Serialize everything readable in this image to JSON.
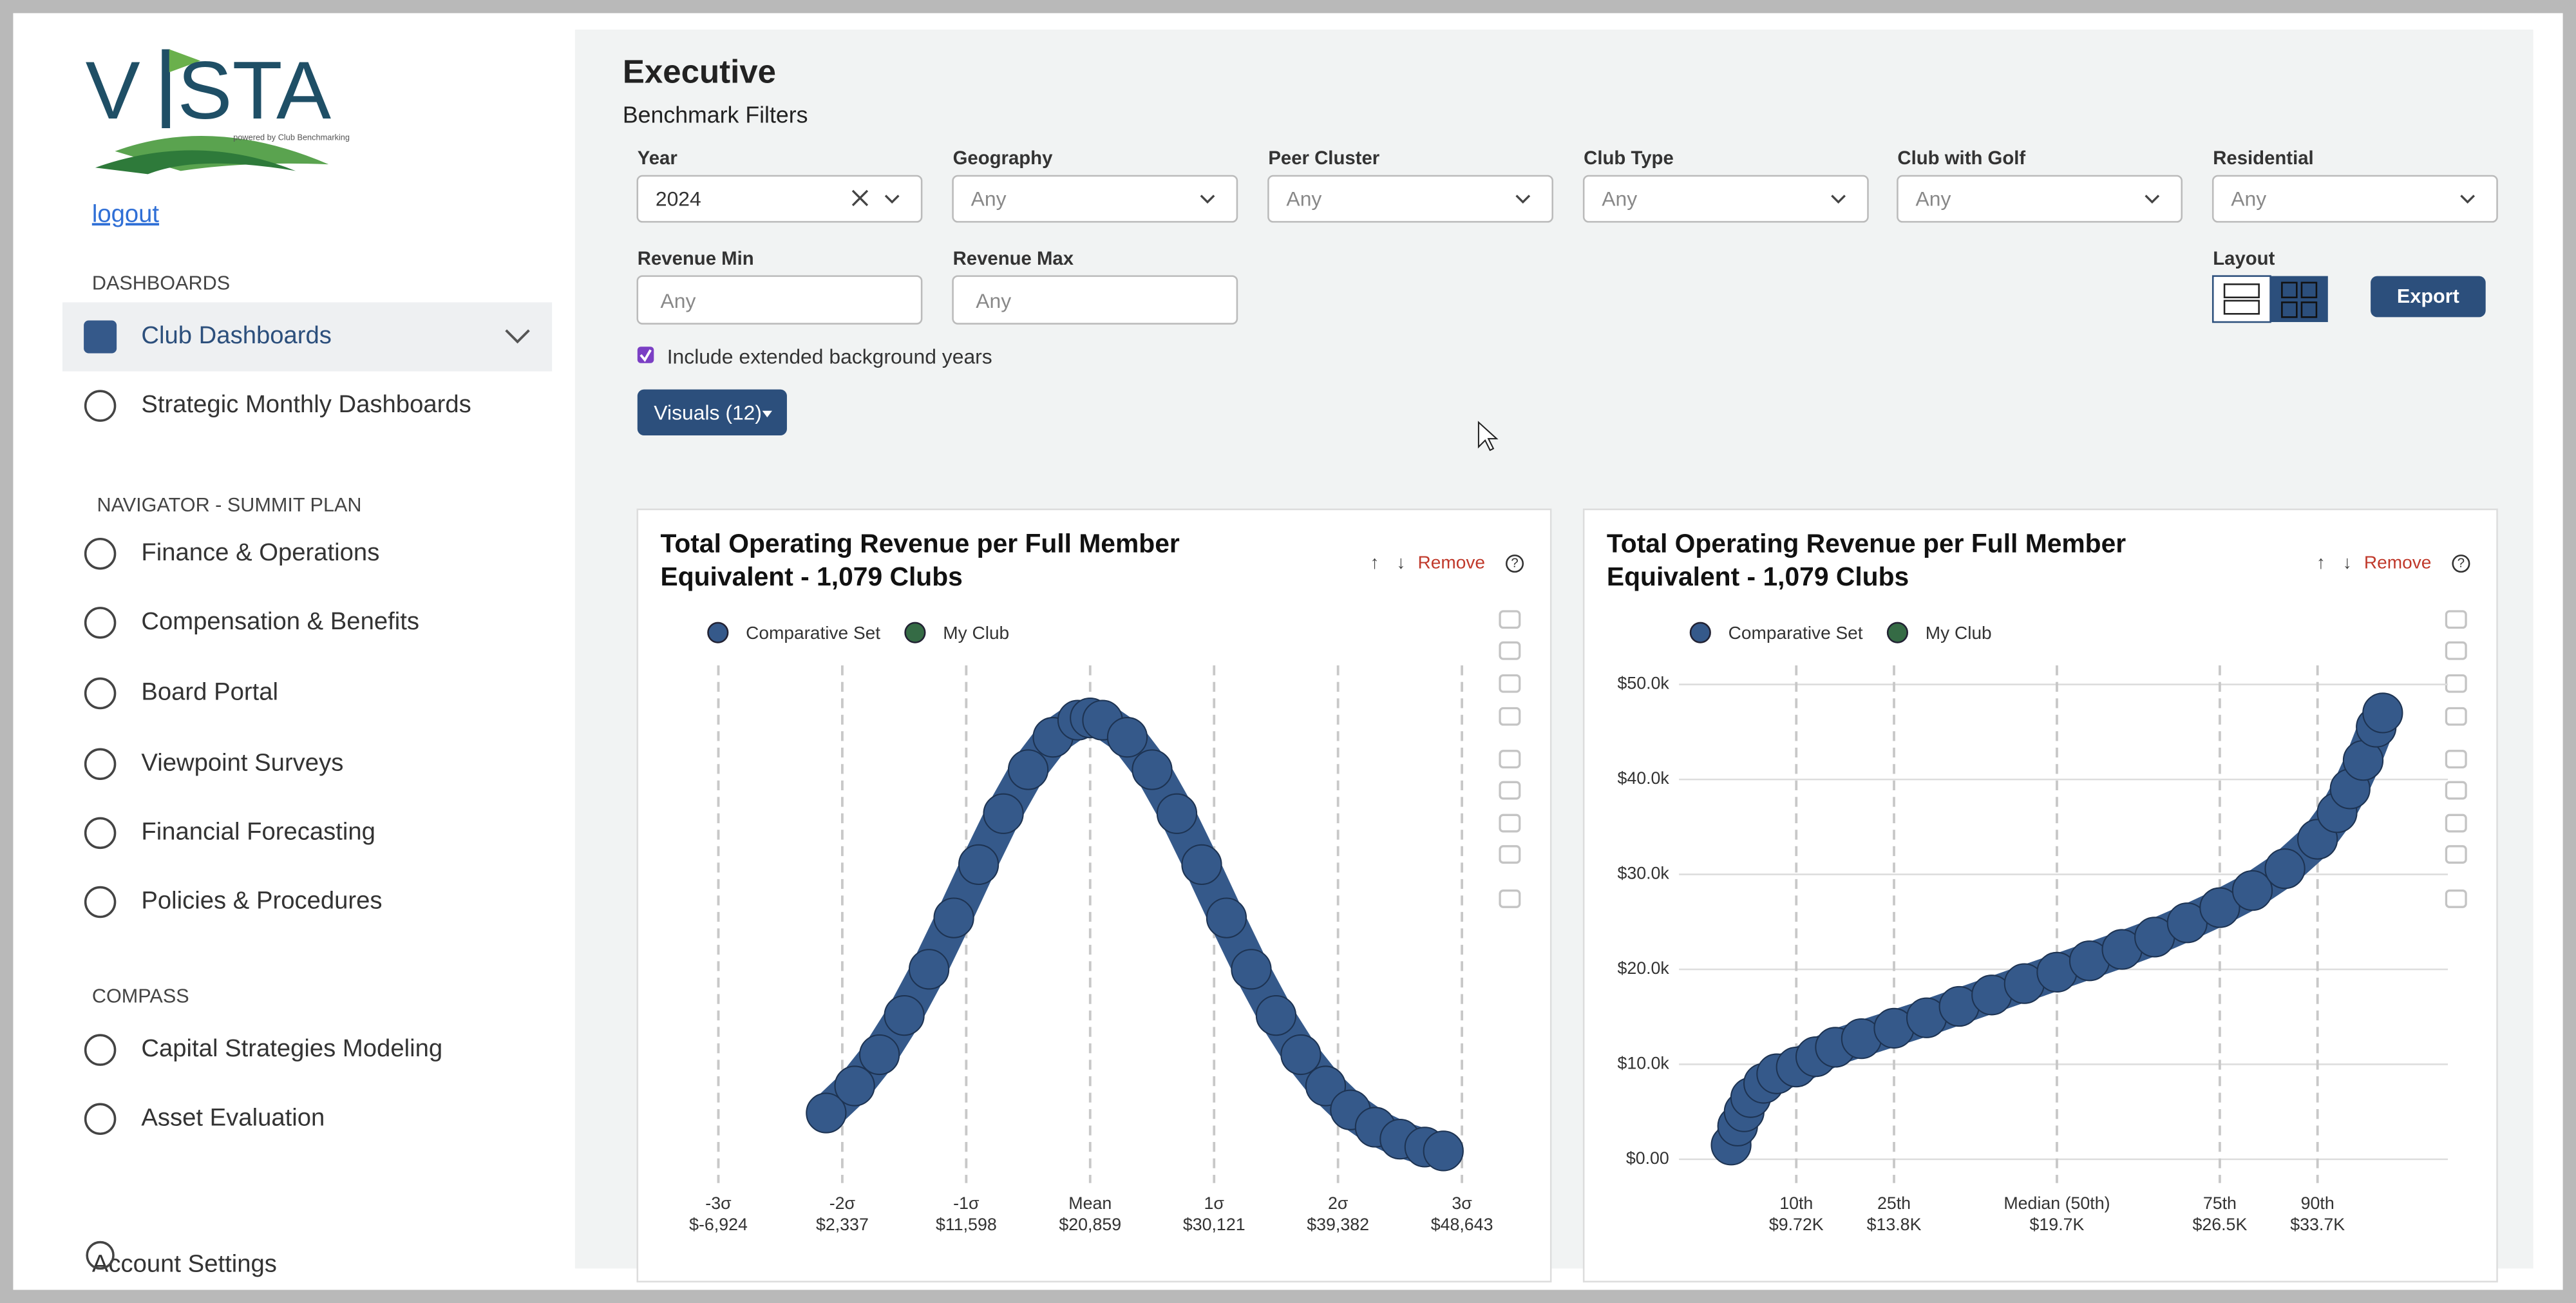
{
  "sidebar": {
    "logo": [
      "V",
      "STA"
    ],
    "logo_tagline": "powered by Club Benchmarking",
    "logout": "logout",
    "sections": [
      {
        "heading": "DASHBOARDS",
        "items": [
          "Club Dashboards",
          "Strategic Monthly Dashboards"
        ]
      },
      {
        "heading": "NAVIGATOR - SUMMIT PLAN",
        "items": [
          "Finance & Operations",
          "Compensation & Benefits",
          "Board Portal",
          "Viewpoint Surveys",
          "Financial Forecasting",
          "Policies & Procedures"
        ]
      },
      {
        "heading": "COMPASS",
        "items": [
          "Capital Strategies Modeling",
          "Asset Evaluation"
        ]
      }
    ],
    "account": "Account Settings"
  },
  "main": {
    "title": "Executive",
    "subtitle": "Benchmark Filters",
    "filters": [
      {
        "label": "Year",
        "value": "2024"
      },
      {
        "label": "Geography",
        "value": "Any"
      },
      {
        "label": "Peer Cluster",
        "value": "Any"
      },
      {
        "label": "Club Type",
        "value": "Any"
      },
      {
        "label": "Club with Golf",
        "value": "Any"
      },
      {
        "label": "Residential",
        "value": "Any"
      }
    ],
    "inputs": [
      {
        "label": "Revenue Min",
        "value": "Any"
      },
      {
        "label": "Revenue Max",
        "value": "Any"
      }
    ],
    "layout_label": "Layout",
    "export": "Export",
    "checkbox": "Include extended background years",
    "visuals": "Visuals (12)"
  },
  "chart_data": [
    {
      "type": "scatter",
      "title": [
        "Total Operating Revenue per Full Member",
        "Equivalent - 1,079 Clubs"
      ],
      "controls": [
        "↑",
        "↓",
        "Remove",
        "?"
      ],
      "xlim": [
        -11500,
        50500
      ],
      "ylim": [
        -2.4e-06,
        4.82e-05
      ],
      "xticks": [
        {
          "value": -6924,
          "label": [
            "-3σ",
            "$-6,924"
          ]
        },
        {
          "value": 2337,
          "label": [
            "-2σ",
            "$2,337"
          ]
        },
        {
          "value": 11598,
          "label": [
            "-1σ",
            "$11,598"
          ]
        },
        {
          "value": 20859,
          "label": [
            "Mean",
            "$20,859"
          ]
        },
        {
          "value": 30121,
          "label": [
            "1σ",
            "$30,121"
          ]
        },
        {
          "value": 39382,
          "label": [
            "2σ",
            "$39,382"
          ]
        },
        {
          "value": 48643,
          "label": [
            "3σ",
            "$48,643"
          ]
        }
      ],
      "series": [
        {
          "name": "Comparative Set",
          "color": "#35598a",
          "x": [
            1131,
            3261,
            5114,
            6966,
            8818,
            10671,
            12523,
            14376,
            16228,
            18080,
            19933,
            20859,
            21785,
            23638,
            25490,
            27342,
            29195,
            31047,
            32900,
            34752,
            36603,
            38457,
            40309,
            42162,
            44014,
            45866,
            47256
          ],
          "values": [
            4.45e-06,
            7.09e-06,
            1.015e-05,
            1.398e-05,
            1.85e-05,
            2.352e-05,
            2.873e-05,
            3.371e-05,
            3.801e-05,
            4.118e-05,
            4.285e-05,
            4.307e-05,
            4.285e-05,
            4.118e-05,
            3.801e-05,
            3.371e-05,
            2.873e-05,
            2.352e-05,
            1.85e-05,
            1.398e-05,
            1.015e-05,
            7.09e-06,
            4.75e-06,
            3.06e-06,
            1.89e-06,
            1.12e-06,
            7.4e-07
          ]
        },
        {
          "name": "My Club",
          "color": "#356b45",
          "x": [],
          "values": []
        }
      ]
    },
    {
      "type": "scatter",
      "title": [
        "Total Operating Revenue per Full Member",
        "Equivalent - 1,079 Clubs"
      ],
      "controls": [
        "↑",
        "↓",
        "Remove",
        "?"
      ],
      "xlim": [
        -8,
        110
      ],
      "ylim": [
        -2500,
        52000
      ],
      "yticks": [
        {
          "value": 0,
          "label": "$0.00"
        },
        {
          "value": 10000,
          "label": "$10.0k"
        },
        {
          "value": 20000,
          "label": "$20.0k"
        },
        {
          "value": 30000,
          "label": "$30.0k"
        },
        {
          "value": 40000,
          "label": "$40.0k"
        },
        {
          "value": 50000,
          "label": "$50.0k"
        }
      ],
      "xticks": [
        {
          "value": 10,
          "label": [
            "10th",
            "$9.72K"
          ]
        },
        {
          "value": 25,
          "label": [
            "25th",
            "$13.8K"
          ]
        },
        {
          "value": 50,
          "label": [
            "Median (50th)",
            "$19.7K"
          ]
        },
        {
          "value": 75,
          "label": [
            "75th",
            "$26.5K"
          ]
        },
        {
          "value": 90,
          "label": [
            "90th",
            "$33.7K"
          ]
        }
      ],
      "grid": true,
      "series": [
        {
          "name": "Comparative Set",
          "color": "#35598a",
          "x": [
            0,
            1,
            2,
            3,
            5,
            7,
            10,
            13,
            16,
            20,
            25,
            30,
            35,
            40,
            45,
            50,
            55,
            60,
            65,
            70,
            75,
            80,
            85,
            90,
            93,
            95,
            97,
            99,
            100
          ],
          "values": [
            1500,
            3500,
            5000,
            6500,
            8000,
            9000,
            9720,
            10800,
            11800,
            12700,
            13800,
            14900,
            16100,
            17300,
            18500,
            19700,
            20900,
            22100,
            23400,
            24900,
            26500,
            28300,
            30600,
            33700,
            36500,
            39000,
            42000,
            45500,
            47000
          ]
        },
        {
          "name": "My Club",
          "color": "#356b45",
          "x": [],
          "values": []
        }
      ]
    }
  ]
}
